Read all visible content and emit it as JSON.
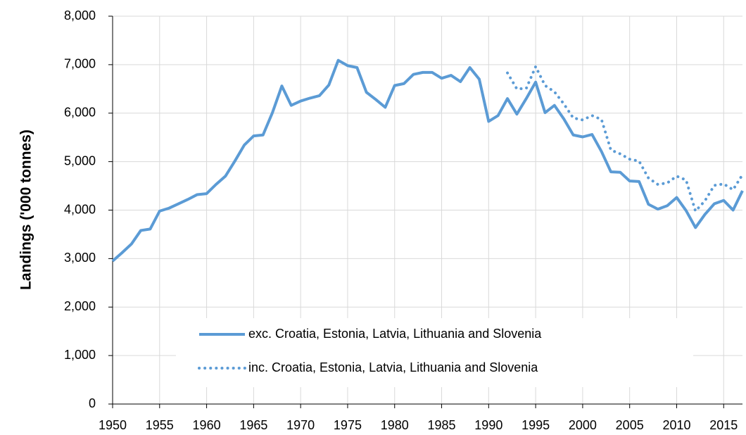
{
  "chart_data": {
    "type": "line",
    "y_label": "Landings ('000 tonnes)",
    "x": [
      1950,
      1951,
      1952,
      1953,
      1954,
      1955,
      1956,
      1957,
      1958,
      1959,
      1960,
      1961,
      1962,
      1963,
      1964,
      1965,
      1966,
      1967,
      1968,
      1969,
      1970,
      1971,
      1972,
      1973,
      1974,
      1975,
      1976,
      1977,
      1978,
      1979,
      1980,
      1981,
      1982,
      1983,
      1984,
      1985,
      1986,
      1987,
      1988,
      1989,
      1990,
      1991,
      1992,
      1993,
      1994,
      1995,
      1996,
      1997,
      1998,
      1999,
      2000,
      2001,
      2002,
      2003,
      2004,
      2005,
      2006,
      2007,
      2008,
      2009,
      2010,
      2011,
      2012,
      2013,
      2014,
      2015,
      2016,
      2017
    ],
    "series": [
      {
        "name": "exc. Croatia, Estonia, Latvia, Lithuania and Slovenia",
        "color": "#5b9bd5",
        "style": "solid",
        "values": [
          2950,
          3120,
          3300,
          3580,
          3610,
          3980,
          4040,
          4130,
          4220,
          4320,
          4340,
          4530,
          4700,
          5010,
          5340,
          5530,
          5550,
          6010,
          6560,
          6160,
          6250,
          6310,
          6360,
          6580,
          7090,
          6980,
          6940,
          6430,
          6280,
          6120,
          6570,
          6610,
          6800,
          6840,
          6840,
          6720,
          6780,
          6650,
          6940,
          6700,
          5830,
          5950,
          6300,
          5980,
          6300,
          6640,
          6010,
          6160,
          5880,
          5550,
          5510,
          5560,
          5210,
          4790,
          4780,
          4600,
          4590,
          4120,
          4020,
          4090,
          4260,
          3990,
          3640,
          3910,
          4130,
          4200,
          4000,
          4400
        ]
      },
      {
        "name": "inc. Croatia, Estonia, Latvia, Lithuania and Slovenia",
        "color": "#5b9bd5",
        "style": "dotted",
        "values": [
          null,
          null,
          null,
          null,
          null,
          null,
          null,
          null,
          null,
          null,
          null,
          null,
          null,
          null,
          null,
          null,
          null,
          null,
          null,
          null,
          null,
          null,
          null,
          null,
          null,
          null,
          null,
          null,
          null,
          null,
          null,
          null,
          null,
          null,
          null,
          null,
          null,
          null,
          null,
          null,
          null,
          null,
          6830,
          6500,
          6510,
          6960,
          6570,
          6440,
          6190,
          5900,
          5860,
          5950,
          5870,
          5240,
          5160,
          5050,
          5010,
          4660,
          4530,
          4560,
          4700,
          4620,
          3980,
          4190,
          4510,
          4540,
          4420,
          4730
        ]
      }
    ],
    "xlim": [
      1950,
      2017
    ],
    "xticks": [
      1950,
      1955,
      1960,
      1965,
      1970,
      1975,
      1980,
      1985,
      1990,
      1995,
      2000,
      2005,
      2010,
      2015
    ],
    "ylim": [
      0,
      8000
    ],
    "yticks": [
      0,
      {
        "value": 1000,
        "label": "1,000"
      },
      {
        "value": 2000,
        "label": "2,000"
      },
      {
        "value": 3000,
        "label": "3,000"
      },
      {
        "value": 4000,
        "label": "4,000"
      },
      {
        "value": 5000,
        "label": "5,000"
      },
      {
        "value": 6000,
        "label": "6,000"
      },
      {
        "value": 7000,
        "label": "7,000"
      },
      {
        "value": 8000,
        "label": "8,000"
      }
    ],
    "grid": true
  }
}
